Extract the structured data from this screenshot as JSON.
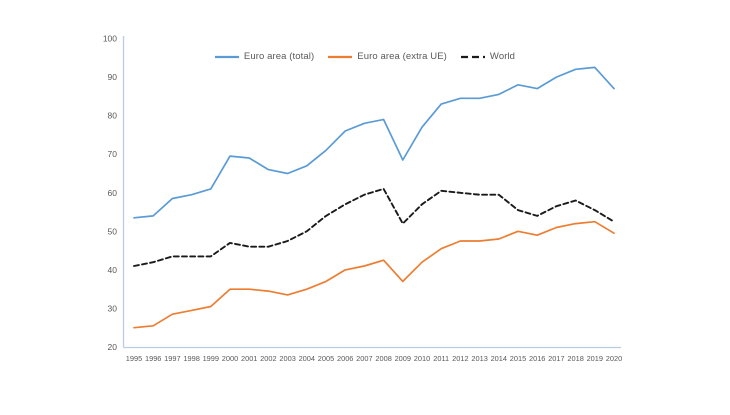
{
  "chart_data": {
    "type": "line",
    "title": "",
    "xlabel": "",
    "ylabel": "",
    "x": [
      1995,
      1996,
      1997,
      1998,
      1999,
      2000,
      2001,
      2002,
      2003,
      2004,
      2005,
      2006,
      2007,
      2008,
      2009,
      2010,
      2011,
      2012,
      2013,
      2014,
      2015,
      2016,
      2017,
      2018,
      2019,
      2020
    ],
    "series": [
      {
        "name": "Euro area (total)",
        "color": "#5B9BD5",
        "style": "solid",
        "values": [
          53.5,
          54,
          58.5,
          59.5,
          61,
          69.5,
          69,
          66,
          65,
          67,
          71,
          76,
          78,
          79,
          68.5,
          77,
          83,
          84.5,
          84.5,
          85.5,
          88,
          87,
          90,
          92,
          92.5,
          87
        ]
      },
      {
        "name": "Euro area (extra UE)",
        "color": "#ED7D31",
        "style": "solid",
        "values": [
          25,
          25.5,
          28.5,
          29.5,
          30.5,
          35,
          35,
          34.5,
          33.5,
          35,
          37,
          40,
          41,
          42.5,
          37,
          42,
          45.5,
          47.5,
          47.5,
          48,
          50,
          49,
          51,
          52,
          52.5,
          49.5
        ]
      },
      {
        "name": "World",
        "color": "#1A1A1A",
        "style": "dashed",
        "values": [
          41,
          42,
          43.5,
          43.5,
          43.5,
          47,
          46,
          46,
          47.5,
          50,
          54,
          57,
          59.5,
          61,
          52,
          57,
          60.5,
          60,
          59.5,
          59.5,
          55.5,
          54,
          56.5,
          58,
          55.5,
          52.5
        ]
      }
    ],
    "ylim": [
      20,
      100
    ],
    "ytick_step": 10,
    "yticks": [
      20,
      30,
      40,
      50,
      60,
      70,
      80,
      90,
      100
    ],
    "grid": false,
    "legend_position": "top"
  },
  "colors": {
    "axis_line": "#BACDE4",
    "tick_text": "#595959",
    "background": "#FFFFFF"
  }
}
